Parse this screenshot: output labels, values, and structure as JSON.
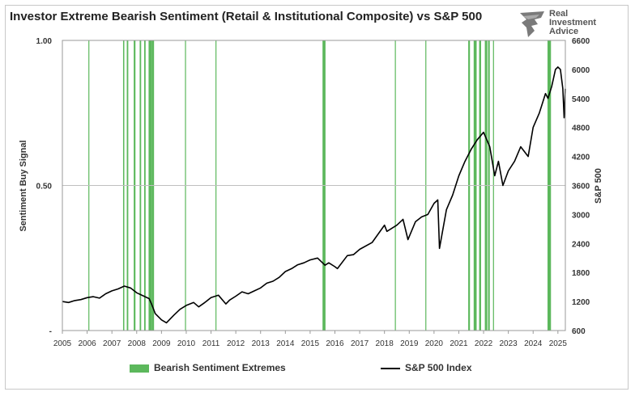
{
  "title": "Investor Extreme Bearish Sentiment (Retail & Institutional Composite) vs S&P 500",
  "brand": {
    "name": "Real\nInvestment\nAdvice",
    "logo_icon": "eagle-logo-icon"
  },
  "colors": {
    "signal": "#5cb85c",
    "index": "#000000",
    "grid": "#bfbfbf"
  },
  "chart_data": {
    "type": "line",
    "xlabel": "",
    "ylabel_left": "Sentiment Buy Signal",
    "ylabel_right": "S&P 500",
    "xlim": [
      2005,
      2025.3
    ],
    "ylim_left": [
      0,
      1
    ],
    "ylim_right": [
      600,
      6600
    ],
    "x_ticks": [
      "2005",
      "2006",
      "2007",
      "2008",
      "2009",
      "2010",
      "2011",
      "2012",
      "2013",
      "2014",
      "2015",
      "2016",
      "2017",
      "2018",
      "2019",
      "2020",
      "2021",
      "2022",
      "2023",
      "2024",
      "2025"
    ],
    "y_left_ticks": [
      {
        "v": 0,
        "label": "-"
      },
      {
        "v": 0.5,
        "label": "0.50"
      },
      {
        "v": 1,
        "label": "1.00"
      }
    ],
    "y_right_ticks": [
      "600",
      "1200",
      "1800",
      "2400",
      "3000",
      "3600",
      "4200",
      "4800",
      "5400",
      "6000",
      "6600"
    ],
    "grid": "horizontal at 0.50",
    "series": [
      {
        "name": "Bearish Sentiment Extremes",
        "kind": "bar-spans",
        "spans": [
          [
            2006.05,
            2006.08
          ],
          [
            2007.45,
            2007.5
          ],
          [
            2007.6,
            2007.66
          ],
          [
            2007.88,
            2007.95
          ],
          [
            2008.12,
            2008.18
          ],
          [
            2008.3,
            2008.36
          ],
          [
            2008.48,
            2008.62
          ],
          [
            2008.62,
            2008.7
          ],
          [
            2009.95,
            2009.98
          ],
          [
            2011.18,
            2011.21
          ],
          [
            2015.5,
            2015.62
          ],
          [
            2018.42,
            2018.45
          ],
          [
            2019.65,
            2019.68
          ],
          [
            2021.38,
            2021.45
          ],
          [
            2021.6,
            2021.72
          ],
          [
            2021.82,
            2021.9
          ],
          [
            2022.05,
            2022.15
          ],
          [
            2022.18,
            2022.25
          ],
          [
            2022.38,
            2022.42
          ],
          [
            2024.58,
            2024.72
          ]
        ]
      },
      {
        "name": "S&P 500 Index",
        "kind": "line",
        "x": [
          2005,
          2005.25,
          2005.5,
          2005.75,
          2006,
          2006.25,
          2006.5,
          2006.75,
          2007,
          2007.25,
          2007.5,
          2007.75,
          2008,
          2008.25,
          2008.5,
          2008.6,
          2008.75,
          2009,
          2009.2,
          2009.5,
          2009.75,
          2010,
          2010.3,
          2010.5,
          2010.75,
          2011,
          2011.3,
          2011.6,
          2011.75,
          2012,
          2012.25,
          2012.5,
          2012.75,
          2013,
          2013.25,
          2013.5,
          2013.75,
          2014,
          2014.25,
          2014.5,
          2014.75,
          2015,
          2015.3,
          2015.6,
          2015.75,
          2016,
          2016.1,
          2016.5,
          2016.75,
          2017,
          2017.5,
          2018,
          2018.1,
          2018.5,
          2018.75,
          2018.95,
          2019.25,
          2019.5,
          2019.75,
          2020,
          2020.15,
          2020.22,
          2020.5,
          2020.75,
          2021,
          2021.25,
          2021.5,
          2021.75,
          2022,
          2022.25,
          2022.45,
          2022.6,
          2022.78,
          2023,
          2023.25,
          2023.5,
          2023.8,
          2024,
          2024.25,
          2024.5,
          2024.6,
          2024.75,
          2024.9,
          2025,
          2025.1,
          2025.2,
          2025.25,
          2025.3
        ],
        "values": [
          1200,
          1180,
          1220,
          1240,
          1280,
          1300,
          1270,
          1360,
          1420,
          1460,
          1520,
          1480,
          1380,
          1320,
          1260,
          1150,
          950,
          820,
          760,
          920,
          1040,
          1120,
          1180,
          1090,
          1180,
          1280,
          1330,
          1150,
          1230,
          1310,
          1400,
          1360,
          1420,
          1480,
          1580,
          1620,
          1700,
          1820,
          1880,
          1960,
          2000,
          2060,
          2100,
          1950,
          2000,
          1920,
          1880,
          2150,
          2170,
          2280,
          2420,
          2780,
          2650,
          2780,
          2900,
          2480,
          2850,
          2950,
          3000,
          3230,
          3300,
          2300,
          3100,
          3400,
          3800,
          4100,
          4350,
          4550,
          4700,
          4400,
          3800,
          4100,
          3600,
          3900,
          4100,
          4400,
          4200,
          4800,
          5100,
          5500,
          5400,
          5650,
          6000,
          6050,
          6000,
          5600,
          5000,
          5600
        ]
      }
    ]
  },
  "legend": {
    "signal_label": "Bearish Sentiment Extremes",
    "index_label": "S&P 500 Index"
  }
}
